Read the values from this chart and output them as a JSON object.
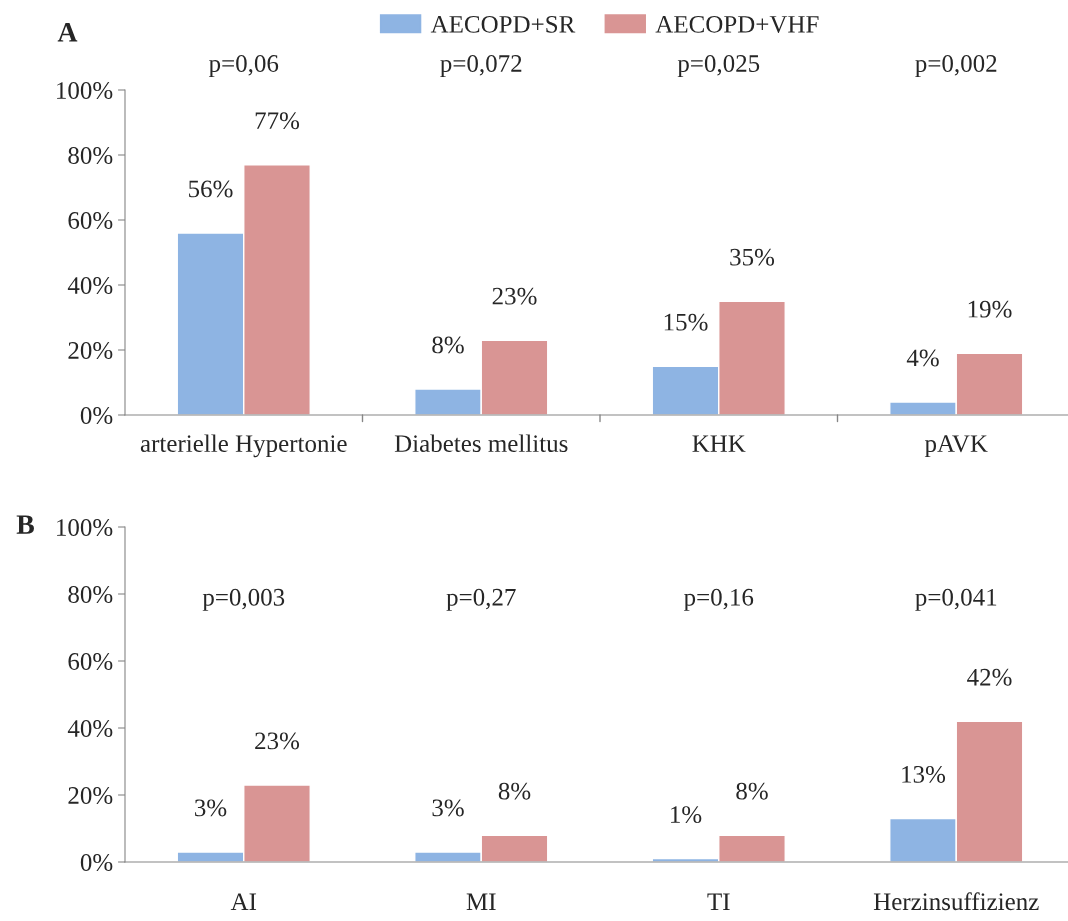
{
  "chart_data": [
    {
      "type": "bar",
      "title": "A",
      "categories": [
        "arterielle Hypertonie",
        "Diabetes mellitus",
        "KHK",
        "pAVK"
      ],
      "series": [
        {
          "name": "AECOPD+SR",
          "color": "#8eb4e3",
          "values": [
            56,
            8,
            15,
            4
          ],
          "value_labels": [
            "56%",
            "8%",
            "15%",
            "4%"
          ]
        },
        {
          "name": "AECOPD+VHF",
          "color": "#d99594",
          "values": [
            77,
            23,
            35,
            19
          ],
          "value_labels": [
            "77%",
            "23%",
            "35%",
            "19%"
          ]
        }
      ],
      "ylim": [
        0,
        100
      ],
      "yticks": [
        {
          "value": 0,
          "label": "0%"
        },
        {
          "value": 20,
          "label": "20%"
        },
        {
          "value": 40,
          "label": "40%"
        },
        {
          "value": 60,
          "label": "60%"
        },
        {
          "value": 80,
          "label": "80%"
        },
        {
          "value": 100,
          "label": "100%"
        }
      ],
      "annotations": [
        "p=0,06",
        "p=0,072",
        "p=0,025",
        "p=0,002"
      ],
      "legend": "top",
      "grid": false
    },
    {
      "type": "bar",
      "title": "B",
      "categories": [
        "AI",
        "MI",
        "TI",
        "Herzinsuffizienz"
      ],
      "series": [
        {
          "color": "#8eb4e3",
          "values": [
            3,
            3,
            1,
            13
          ],
          "value_labels": [
            "3%",
            "3%",
            "1%",
            "13%"
          ]
        },
        {
          "color": "#d99594",
          "values": [
            23,
            8,
            8,
            42
          ],
          "value_labels": [
            "23%",
            "8%",
            "8%",
            "42%"
          ]
        }
      ],
      "ylim": [
        0,
        100
      ],
      "yticks": [
        {
          "value": 0,
          "label": "0%"
        },
        {
          "value": 20,
          "label": "20%"
        },
        {
          "value": 40,
          "label": "40%"
        },
        {
          "value": 60,
          "label": "60%"
        },
        {
          "value": 80,
          "label": "80%"
        },
        {
          "value": 100,
          "label": "100%"
        }
      ],
      "annotations": [
        "p=0,003",
        "p=0,27",
        "p=0,16",
        "p=0,041"
      ],
      "legend": false,
      "grid": false
    }
  ]
}
